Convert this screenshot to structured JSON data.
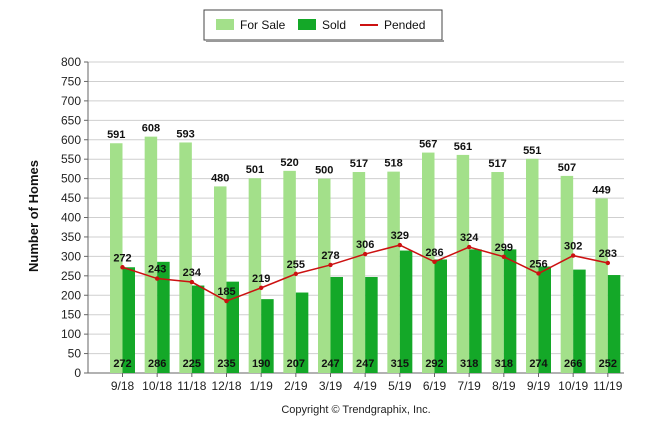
{
  "chart_data": {
    "type": "bar",
    "ylabel": "Number of Homes",
    "ylim": [
      0,
      800
    ],
    "yticks": [
      0,
      50,
      100,
      150,
      200,
      250,
      300,
      350,
      400,
      450,
      500,
      550,
      600,
      650,
      700,
      750,
      800
    ],
    "grid": true,
    "legend_position": "top",
    "categories": [
      "9/18",
      "10/18",
      "11/18",
      "12/18",
      "1/19",
      "2/19",
      "3/19",
      "4/19",
      "5/19",
      "6/19",
      "7/19",
      "8/19",
      "9/19",
      "10/19",
      "11/19"
    ],
    "series": [
      {
        "name": "For Sale",
        "kind": "bar",
        "color": "#a3e08a",
        "values": [
          591,
          608,
          593,
          480,
          501,
          520,
          500,
          517,
          518,
          567,
          561,
          517,
          551,
          507,
          449
        ]
      },
      {
        "name": "Sold",
        "kind": "bar",
        "color": "#14a828",
        "values": [
          272,
          286,
          225,
          235,
          190,
          207,
          247,
          247,
          315,
          292,
          318,
          318,
          274,
          266,
          252
        ]
      },
      {
        "name": "Pended",
        "kind": "line",
        "color": "#cc1111",
        "values": [
          272,
          243,
          234,
          185,
          219,
          255,
          278,
          306,
          329,
          286,
          324,
          299,
          256,
          302,
          283
        ]
      }
    ]
  },
  "copyright": "Copyright © Trendgraphix, Inc."
}
